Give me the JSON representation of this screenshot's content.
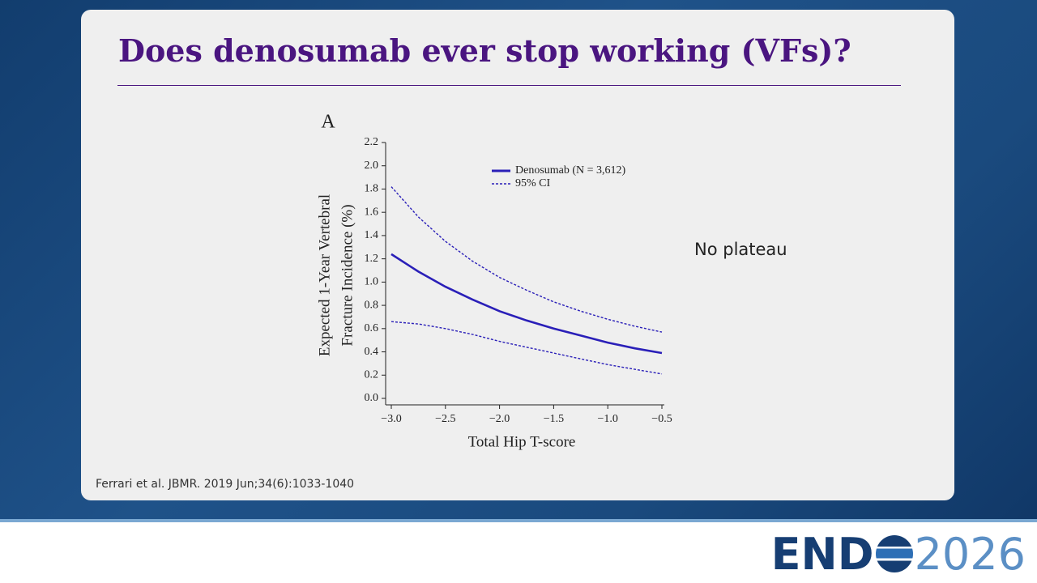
{
  "slide": {
    "title": "Does denosumab ever stop working (VFs)?",
    "note": "No plateau",
    "citation": "Ferrari et al. JBMR. 2019 Jun;34(6):1033-1040",
    "logo": {
      "left": "END",
      "right": "2026"
    }
  },
  "chart_data": {
    "type": "line",
    "panel": "A",
    "x_label": "Total Hip T-score",
    "y_label": [
      "Expected 1-Year Vertebral",
      "Fracture Incidence (%)"
    ],
    "x": [
      -3.0,
      -2.75,
      -2.5,
      -2.25,
      -2.0,
      -1.75,
      -1.5,
      -1.25,
      -1.0,
      -0.75,
      -0.5
    ],
    "series": [
      {
        "name": "Denosumab (N = 3,612)",
        "color": "#2a1fb8",
        "values": [
          1.24,
          1.09,
          0.96,
          0.85,
          0.75,
          0.67,
          0.6,
          0.54,
          0.48,
          0.43,
          0.39
        ]
      },
      {
        "name": "95% CI",
        "color": "#2a1fb8",
        "dashed": true,
        "upper": [
          1.82,
          1.56,
          1.35,
          1.18,
          1.04,
          0.93,
          0.83,
          0.75,
          0.68,
          0.62,
          0.57
        ],
        "lower": [
          0.66,
          0.64,
          0.6,
          0.55,
          0.49,
          0.44,
          0.39,
          0.34,
          0.29,
          0.25,
          0.21
        ]
      }
    ],
    "xlim": [
      -3.0,
      -0.5
    ],
    "xticks": [
      {
        "value": -3.0,
        "label": "−3.0"
      },
      {
        "value": -2.5,
        "label": "−2.5"
      },
      {
        "value": -2.0,
        "label": "−2.0"
      },
      {
        "value": -1.5,
        "label": "−1.5"
      },
      {
        "value": -1.0,
        "label": "−1.0"
      },
      {
        "value": -0.5,
        "label": "−0.5"
      }
    ],
    "ylim": [
      0,
      2.2
    ],
    "yticks": [
      {
        "value": 0,
        "label": "0.0"
      },
      0.2,
      0.4,
      0.6,
      0.8,
      {
        "value": 1,
        "label": "1.0"
      },
      1.2,
      1.4,
      1.6,
      1.8,
      {
        "value": 2,
        "label": "2.0"
      },
      2.2
    ],
    "legend": "upper-right",
    "grid": false
  }
}
